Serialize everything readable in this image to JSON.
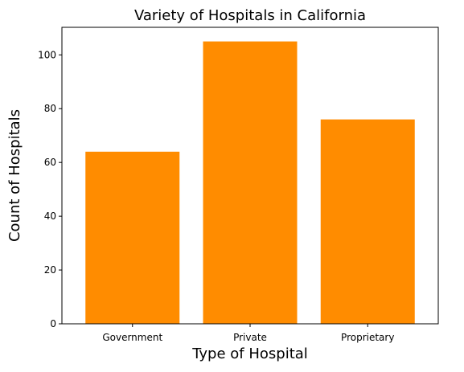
{
  "chart_data": {
    "type": "bar",
    "title": "Variety of Hospitals in California",
    "xlabel": "Type of Hospital",
    "ylabel": "Count of Hospitals",
    "categories": [
      "Government",
      "Private",
      "Proprietary"
    ],
    "values": [
      64,
      105,
      76
    ],
    "ylim": [
      0,
      110.25
    ],
    "yticks": [
      0,
      20,
      40,
      60,
      80,
      100
    ],
    "bar_color": "#ff8c00",
    "grid": false,
    "legend": "none"
  }
}
